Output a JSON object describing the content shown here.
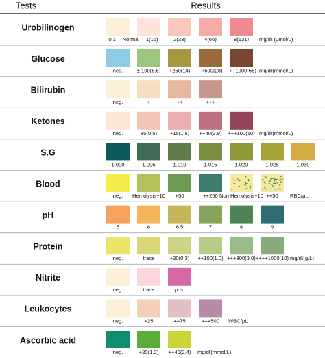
{
  "header": {
    "tests": "Tests",
    "results": "Results"
  },
  "rows": [
    {
      "test": "Urobilinogen",
      "range_label": "0.1 ←Normal→ 1(16)",
      "unit": "mg/dℓ (μmol/L)",
      "swatches": [
        {
          "color": "#fdf0d8",
          "label": null
        },
        {
          "color": "#fde3dc",
          "label": null
        },
        {
          "color": "#f9c8bd",
          "label": "2(33)"
        },
        {
          "color": "#f4aba4",
          "label": "4(66)"
        },
        {
          "color": "#ef8a92",
          "label": "8(131)"
        }
      ]
    },
    {
      "test": "Glucose",
      "unit": "mg/dℓ(mmol/L)",
      "swatches": [
        {
          "color": "#8ecbe5",
          "label": "neg."
        },
        {
          "color": "#9cc57f",
          "label": "± 100(5.5)"
        },
        {
          "color": "#a7983f",
          "label": "+250(14)"
        },
        {
          "color": "#9a6a3a",
          "label": "++500(28)"
        },
        {
          "color": "#7a4630",
          "label": "+++1000(55)"
        }
      ]
    },
    {
      "test": "Bilirubin",
      "swatches": [
        {
          "color": "#fdf0d8",
          "label": "neg."
        },
        {
          "color": "#f6dcc0",
          "label": "+"
        },
        {
          "color": "#e6b99e",
          "label": "++"
        },
        {
          "color": "#c9988c",
          "label": "+++"
        }
      ]
    },
    {
      "test": "Ketones",
      "unit": "mg/dℓ(mmol/L)",
      "swatches": [
        {
          "color": "#fbe5d3",
          "label": "neg."
        },
        {
          "color": "#f3c5b8",
          "label": "±5(0.5)"
        },
        {
          "color": "#eaaeae",
          "label": "+15(1.5)"
        },
        {
          "color": "#c07080",
          "label": "++40(3.9)"
        },
        {
          "color": "#94445a",
          "label": "+++100(10)"
        }
      ]
    },
    {
      "test": "S.G",
      "swatches": [
        {
          "color": "#0c5a5c",
          "label": "1.000"
        },
        {
          "color": "#3e6a56",
          "label": "1.005"
        },
        {
          "color": "#5f7c48",
          "label": "1.010"
        },
        {
          "color": "#7b8e3f",
          "label": "1.015"
        },
        {
          "color": "#90983a",
          "label": "1.020"
        },
        {
          "color": "#a8a23a",
          "label": "1.025"
        },
        {
          "color": "#d4ac45",
          "label": "1.030"
        }
      ]
    },
    {
      "test": "Blood",
      "unit": "RBC/μL",
      "swatches": [
        {
          "color": "#f2ec4c",
          "label": "neg."
        },
        {
          "color": "#b5c05a",
          "label": "Hemolysis+10"
        },
        {
          "color": "#6b9a55",
          "label": "+50"
        },
        {
          "color": "#3e7a6e",
          "label": "++250"
        },
        {
          "color": "#f7eaa0",
          "pattern": "dots",
          "label": "Non Hemolysis+10"
        },
        {
          "color": "#f7eaa0",
          "pattern": "dense-dots",
          "label": "++50"
        }
      ]
    },
    {
      "test": "pH",
      "swatches": [
        {
          "color": "#f6a25e",
          "label": "5"
        },
        {
          "color": "#f5b45a",
          "label": "6"
        },
        {
          "color": "#c7b55c",
          "label": "6.5"
        },
        {
          "color": "#86a55b",
          "label": "7"
        },
        {
          "color": "#4d8456",
          "label": "8"
        },
        {
          "color": "#2f6d72",
          "label": "9"
        }
      ]
    },
    {
      "test": "Protein",
      "unit": "mg/dℓ(g/L)",
      "swatches": [
        {
          "color": "#ece468",
          "label": "neg."
        },
        {
          "color": "#d9d77a",
          "label": "trace"
        },
        {
          "color": "#cfd385",
          "label": "+30(0.3)"
        },
        {
          "color": "#b3cc88",
          "label": "++100(1.0)"
        },
        {
          "color": "#98bd8a",
          "label": "+++300(3.0)"
        },
        {
          "color": "#8aab7c",
          "label": "++++1000(10)"
        }
      ]
    },
    {
      "test": "Nitrite",
      "swatches": [
        {
          "color": "#fdf0d8",
          "label": "neg."
        },
        {
          "color": "#fbd6da",
          "label": "trace"
        },
        {
          "color": "#d867a8",
          "label": "pos."
        }
      ]
    },
    {
      "test": "Leukocytes",
      "unit": "WBC/μL",
      "swatches": [
        {
          "color": "#fdf0d8",
          "label": "neg."
        },
        {
          "color": "#f4d0b8",
          "label": "+25"
        },
        {
          "color": "#e3c0c4",
          "label": "++75"
        },
        {
          "color": "#b98aaa",
          "label": "+++500"
        }
      ]
    },
    {
      "test": "Ascorbic acid",
      "unit": "mg/dℓ(mmol/L)",
      "swatches": [
        {
          "color": "#128c70",
          "label": "neg."
        },
        {
          "color": "#5bac3a",
          "label": "+20(1.2)"
        },
        {
          "color": "#cbd436",
          "label": "++40(2.4)"
        }
      ]
    }
  ]
}
